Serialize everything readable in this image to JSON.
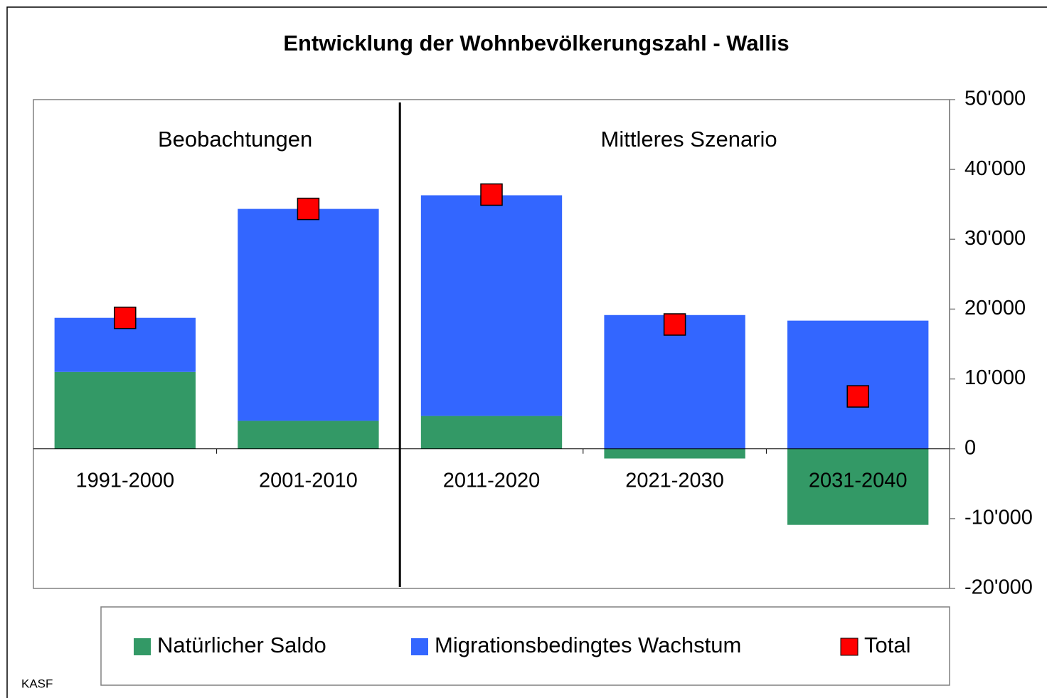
{
  "chart_data": {
    "type": "bar",
    "stacked": true,
    "title": "Entwicklung der Wohnbevölkerungszahl - Wallis",
    "annotations": [
      "Beobachtungen",
      "Mittleres Szenario"
    ],
    "source": "KASF",
    "categories": [
      "1991-2000",
      "2001-2010",
      "2011-2020",
      "2021-2030",
      "2031-2040"
    ],
    "series": [
      {
        "name": "Natürlicher Saldo",
        "color": "#339966",
        "type": "bar",
        "values": [
          11000,
          4000,
          4700,
          -1400,
          -10900
        ]
      },
      {
        "name": "Migrationsbedingtes Wachstum",
        "color": "#3366ff",
        "type": "bar",
        "values": [
          7750,
          30350,
          31600,
          19150,
          18350
        ]
      },
      {
        "name": "Total",
        "color": "#ff0000",
        "type": "scatter",
        "values": [
          18750,
          34350,
          36400,
          17800,
          7500
        ]
      }
    ],
    "ylim": [
      -20000,
      50000
    ],
    "yticks": [
      {
        "value": -20000,
        "label": "-20'000"
      },
      {
        "value": -10000,
        "label": "-10'000"
      },
      0,
      {
        "value": 10000,
        "label": "10'000"
      },
      {
        "value": 20000,
        "label": "20'000"
      },
      {
        "value": 30000,
        "label": "30'000"
      },
      {
        "value": 40000,
        "label": "40'000"
      },
      {
        "value": 50000,
        "label": "50'000"
      }
    ],
    "y_axis_side": "right",
    "grid": false,
    "legend": "bottom"
  }
}
